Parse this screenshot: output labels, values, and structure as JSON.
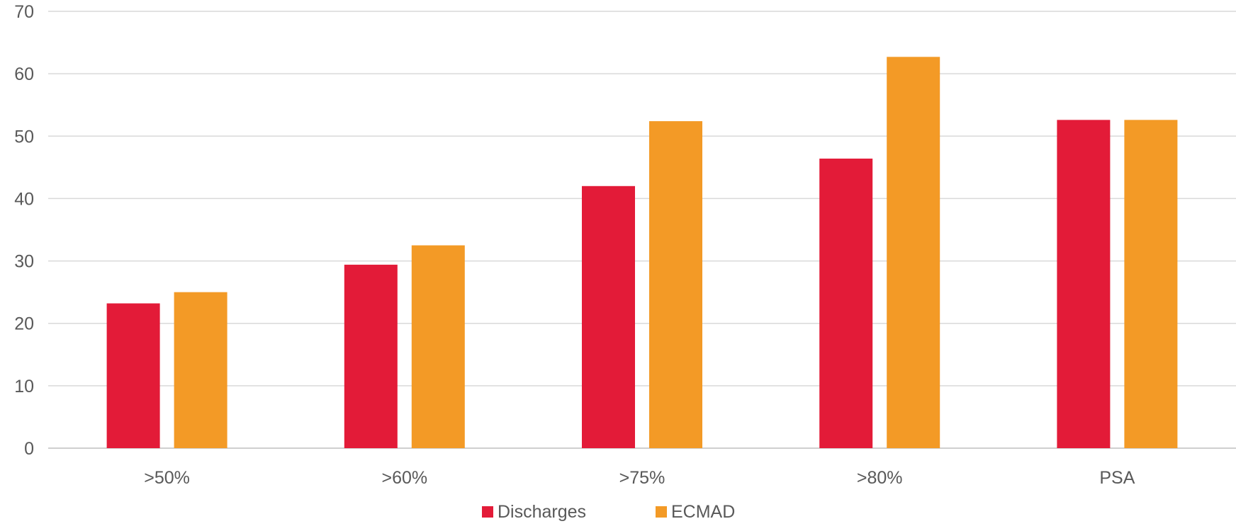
{
  "chart_data": {
    "type": "bar",
    "categories": [
      ">50%",
      ">60%",
      ">75%",
      ">80%",
      "PSA"
    ],
    "series": [
      {
        "name": "Discharges",
        "color": "#E31B38",
        "values": [
          23.2,
          29.4,
          42.0,
          46.4,
          52.6
        ]
      },
      {
        "name": "ECMAD",
        "color": "#F39A26",
        "values": [
          25.0,
          32.5,
          52.4,
          62.7,
          52.6
        ]
      }
    ],
    "ylim": [
      0,
      70
    ],
    "yticks": [
      "0",
      "10",
      "20",
      "30",
      "40",
      "50",
      "60",
      "70"
    ],
    "title": "",
    "xlabel": "",
    "ylabel": "",
    "grid": true,
    "legend_position": "bottom"
  }
}
